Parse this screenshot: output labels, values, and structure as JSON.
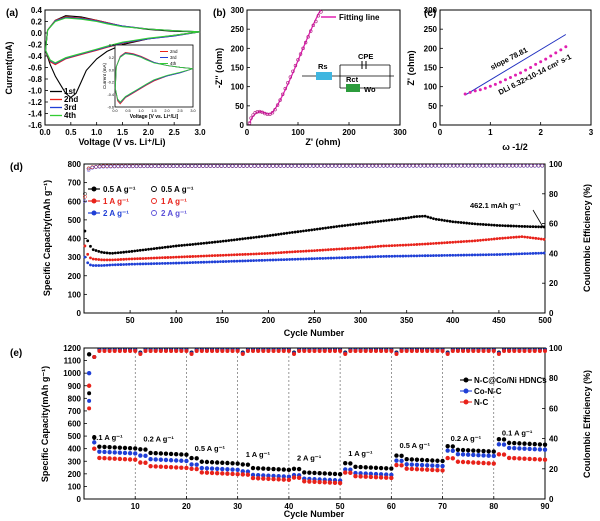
{
  "colors": {
    "black": "#000000",
    "red": "#e8221a",
    "blue": "#1f3fd6",
    "green": "#33cc33",
    "magenta": "#e020b0",
    "purple": "#5a4fd8",
    "circuit_rs": "#3fb6e0",
    "circuit_rct": "#2c9c3c"
  },
  "chart_data": [
    {
      "panel": "(a)",
      "type": "line",
      "xlabel": "Voltage (V vs. Li⁺/Li)",
      "ylabel": "Current(mA)",
      "xlim": [
        0.0,
        3.0
      ],
      "ylim": [
        -1.6,
        0.4
      ],
      "xticks": [
        "0.0",
        "0.5",
        "1.0",
        "1.5",
        "2.0",
        "2.5",
        "3.0"
      ],
      "yticks": [
        "-1.6",
        "-1.4",
        "-1.2",
        "-1.0",
        "-0.8",
        "-0.6",
        "-0.4",
        "-0.2",
        "0.0",
        "0.2",
        "0.4"
      ],
      "legend": [
        "1st",
        "2nd",
        "3rd",
        "4th"
      ],
      "series": [
        {
          "name": "1st",
          "color": "#000000",
          "x": [
            0.01,
            0.1,
            0.2,
            0.3,
            0.4,
            0.5,
            0.6,
            0.7,
            0.8,
            1.0,
            1.2,
            1.5,
            2.0,
            2.5,
            3.0,
            2.5,
            2.0,
            1.5,
            1.2,
            1.0,
            0.7,
            0.4,
            0.2,
            0.05,
            0.01
          ],
          "y": [
            -0.3,
            -0.55,
            -0.75,
            -0.9,
            -1.05,
            -1.12,
            -1.05,
            -0.85,
            -0.65,
            -0.45,
            -0.32,
            -0.2,
            -0.1,
            -0.04,
            0.02,
            0.03,
            0.06,
            0.12,
            0.18,
            0.22,
            0.28,
            0.3,
            0.22,
            0.05,
            -0.3
          ]
        },
        {
          "name": "2nd",
          "color": "#e8221a",
          "x": [
            0.01,
            0.1,
            0.2,
            0.4,
            0.6,
            0.8,
            1.0,
            1.2,
            1.5,
            2.0,
            2.5,
            3.0,
            2.5,
            2.0,
            1.5,
            1.2,
            1.0,
            0.7,
            0.4,
            0.2,
            0.05,
            0.01
          ],
          "y": [
            -0.3,
            -0.5,
            -0.55,
            -0.45,
            -0.4,
            -0.35,
            -0.3,
            -0.25,
            -0.18,
            -0.1,
            -0.05,
            0.02,
            0.04,
            0.07,
            0.12,
            0.18,
            0.22,
            0.26,
            0.28,
            0.22,
            0.05,
            -0.3
          ]
        },
        {
          "name": "3rd",
          "color": "#1f3fd6",
          "x": [
            0.01,
            0.1,
            0.2,
            0.4,
            0.6,
            0.8,
            1.0,
            1.2,
            1.5,
            2.0,
            2.5,
            3.0,
            2.5,
            2.0,
            1.5,
            1.2,
            1.0,
            0.7,
            0.4,
            0.2,
            0.05,
            0.01
          ],
          "y": [
            -0.3,
            -0.48,
            -0.53,
            -0.44,
            -0.39,
            -0.34,
            -0.29,
            -0.24,
            -0.17,
            -0.1,
            -0.05,
            0.02,
            0.04,
            0.07,
            0.12,
            0.17,
            0.21,
            0.25,
            0.27,
            0.21,
            0.05,
            -0.3
          ]
        },
        {
          "name": "4th",
          "color": "#33cc33",
          "x": [
            0.01,
            0.1,
            0.2,
            0.4,
            0.6,
            0.8,
            1.0,
            1.2,
            1.5,
            2.0,
            2.5,
            3.0,
            2.5,
            2.0,
            1.5,
            1.2,
            1.0,
            0.7,
            0.4,
            0.2,
            0.05,
            0.01
          ],
          "y": [
            -0.3,
            -0.47,
            -0.52,
            -0.43,
            -0.38,
            -0.33,
            -0.28,
            -0.23,
            -0.16,
            -0.09,
            -0.04,
            0.02,
            0.04,
            0.07,
            0.11,
            0.16,
            0.2,
            0.24,
            0.26,
            0.2,
            0.05,
            -0.3
          ]
        }
      ],
      "inset": {
        "xlabel": "Voltage [V vs. Li⁺/Li]",
        "ylabel": "Current (mA)",
        "xlim": [
          0.0,
          3.0
        ],
        "ylim": [
          -0.6,
          0.4
        ],
        "xticks": [
          "0.0",
          "0.5",
          "1.0",
          "1.5",
          "2.0",
          "2.5",
          "3.0"
        ],
        "yticks": [
          "-0.6",
          "-0.4",
          "-0.2",
          "0.0",
          "0.2",
          "0.4"
        ],
        "legend": [
          "2nd",
          "3rd",
          "4th"
        ]
      }
    },
    {
      "panel": "(b)",
      "type": "scatter",
      "xlabel": "Z' (ohm)",
      "ylabel": "-Z'' (ohm)",
      "xlim": [
        0,
        300
      ],
      "ylim": [
        0,
        300
      ],
      "xticks": [
        "0",
        "100",
        "200",
        "300"
      ],
      "yticks": [
        "0",
        "50",
        "100",
        "150",
        "200",
        "250",
        "300"
      ],
      "legend": [
        "Fitting line"
      ],
      "circuit_labels": [
        "Rs",
        "CPE",
        "Rct",
        "Wo"
      ],
      "points_x": [
        5,
        8,
        12,
        16,
        20,
        25,
        30,
        35,
        40,
        45,
        50,
        55,
        60,
        65,
        70,
        75,
        80,
        85,
        90,
        95,
        100,
        105,
        110,
        115,
        120,
        125,
        130,
        135,
        140,
        145
      ],
      "points_y": [
        5,
        18,
        26,
        32,
        34,
        35,
        33,
        30,
        28,
        28,
        32,
        40,
        52,
        65,
        80,
        95,
        110,
        125,
        140,
        155,
        170,
        185,
        200,
        215,
        230,
        245,
        260,
        270,
        285,
        295
      ],
      "fit_x": [
        5,
        10,
        15,
        20,
        25,
        30,
        35,
        40,
        45,
        50,
        60,
        70,
        80,
        90,
        100,
        110,
        120,
        130,
        140,
        145
      ],
      "fit_y": [
        5,
        20,
        28,
        33,
        35,
        34,
        31,
        29,
        29,
        33,
        52,
        78,
        106,
        136,
        168,
        200,
        232,
        262,
        290,
        300
      ]
    },
    {
      "panel": "(c)",
      "type": "scatter",
      "xlabel": "ω -1/2",
      "ylabel": "Z' (ohm)",
      "xlim": [
        0,
        3
      ],
      "ylim": [
        0,
        300
      ],
      "xticks": [
        "0",
        "1",
        "2",
        "3"
      ],
      "yticks": [
        "0",
        "50",
        "100",
        "150",
        "200",
        "250",
        "300"
      ],
      "annotations": [
        "slope 78.81",
        "DLi 6.32×10-14 cm² s-1"
      ],
      "points_x": [
        0.5,
        0.6,
        0.7,
        0.8,
        0.9,
        1.0,
        1.1,
        1.2,
        1.3,
        1.4,
        1.5,
        1.6,
        1.7,
        1.8,
        1.9,
        2.0,
        2.1,
        2.2,
        2.3,
        2.4,
        2.5
      ],
      "points_y": [
        81,
        85,
        89,
        92,
        96,
        101,
        106,
        112,
        118,
        124,
        130,
        136,
        143,
        150,
        158,
        165,
        172,
        180,
        188,
        196,
        204
      ],
      "fit_x": [
        0.5,
        2.5
      ],
      "fit_y": [
        78,
        236
      ]
    },
    {
      "panel": "(d)",
      "type": "scatter",
      "xlabel": "Cycle Number",
      "ylabel": "Specific Capacity(mAh g⁻¹)",
      "y2label": "Coulombic Efficiency (%)",
      "xlim": [
        0,
        500
      ],
      "ylim": [
        0,
        800
      ],
      "y2lim": [
        0,
        100
      ],
      "xticks": [
        "50",
        "100",
        "150",
        "200",
        "250",
        "300",
        "350",
        "400",
        "450",
        "500"
      ],
      "yticks": [
        "0",
        "100",
        "200",
        "300",
        "400",
        "500",
        "600",
        "700",
        "800"
      ],
      "y2ticks": [
        "0",
        "20",
        "40",
        "60",
        "80",
        "100"
      ],
      "annotation": "462.1 mAh g⁻¹",
      "legend": [
        "0.5 A g⁻¹",
        "1 A g⁻¹",
        "2 A g⁻¹",
        "0.5 A g⁻¹",
        "1 A g⁻¹",
        "2 A g⁻¹"
      ],
      "capacity_series": [
        {
          "name": "0.5 A g⁻¹",
          "color": "#000000",
          "x": [
            1,
            5,
            10,
            20,
            30,
            50,
            75,
            100,
            125,
            150,
            175,
            200,
            225,
            250,
            275,
            300,
            325,
            350,
            360,
            370,
            380,
            400,
            425,
            450,
            475,
            500
          ],
          "y": [
            440,
            370,
            340,
            325,
            320,
            330,
            345,
            360,
            372,
            385,
            400,
            415,
            432,
            448,
            465,
            480,
            495,
            510,
            518,
            520,
            505,
            490,
            478,
            470,
            465,
            462
          ]
        },
        {
          "name": "1 A g⁻¹",
          "color": "#e8221a",
          "x": [
            1,
            5,
            10,
            20,
            30,
            50,
            75,
            100,
            125,
            150,
            175,
            200,
            225,
            250,
            275,
            300,
            325,
            350,
            375,
            400,
            425,
            450,
            475,
            500
          ],
          "y": [
            360,
            300,
            290,
            285,
            285,
            290,
            295,
            300,
            305,
            310,
            315,
            320,
            328,
            335,
            343,
            350,
            360,
            365,
            372,
            380,
            388,
            400,
            410,
            395
          ]
        },
        {
          "name": "2 A g⁻¹",
          "color": "#1f3fd6",
          "x": [
            1,
            5,
            10,
            20,
            30,
            50,
            75,
            100,
            125,
            150,
            175,
            200,
            225,
            250,
            275,
            300,
            325,
            350,
            375,
            400,
            425,
            450,
            475,
            500
          ],
          "y": [
            300,
            260,
            255,
            255,
            258,
            262,
            265,
            268,
            272,
            276,
            280,
            284,
            288,
            292,
            296,
            300,
            304,
            306,
            308,
            310,
            312,
            314,
            318,
            322
          ]
        }
      ],
      "efficiency_series": [
        {
          "name": "0.5 A g⁻¹",
          "color": "#000000",
          "x": [
            1,
            3,
            5,
            10,
            20,
            50,
            100,
            150,
            200,
            250,
            300,
            350,
            400,
            450,
            500
          ],
          "y": [
            80,
            95,
            97,
            98,
            98.5,
            98.5,
            98.6,
            98.6,
            98.7,
            98.7,
            98.7,
            98.8,
            98.8,
            98.8,
            98.8
          ]
        },
        {
          "name": "1 A g⁻¹",
          "color": "#e8221a",
          "x": [
            1,
            3,
            5,
            10,
            20,
            50,
            100,
            150,
            200,
            250,
            300,
            350,
            400,
            450,
            500
          ],
          "y": [
            78,
            94,
            97,
            98,
            98.5,
            98.6,
            98.6,
            98.7,
            98.7,
            98.7,
            98.8,
            98.8,
            98.8,
            98.8,
            98.9
          ]
        },
        {
          "name": "2 A g⁻¹",
          "color": "#5a4fd8",
          "x": [
            1,
            3,
            5,
            10,
            20,
            50,
            100,
            150,
            200,
            250,
            300,
            350,
            400,
            450,
            500
          ],
          "y": [
            75,
            93,
            96,
            97.8,
            98.2,
            98.4,
            98.5,
            98.6,
            98.6,
            98.7,
            98.7,
            98.7,
            98.8,
            98.8,
            98.8
          ]
        }
      ]
    },
    {
      "panel": "(e)",
      "type": "scatter",
      "xlabel": "Cycle Number",
      "ylabel": "Specific Capacity(mAh g⁻¹)",
      "y2label": "Coulombic Efficiency (%)",
      "xlim": [
        0,
        90
      ],
      "ylim": [
        0,
        1200
      ],
      "y2lim": [
        0,
        100
      ],
      "xticks": [
        "10",
        "20",
        "30",
        "40",
        "50",
        "60",
        "70",
        "80",
        "90"
      ],
      "yticks": [
        "0",
        "100",
        "200",
        "300",
        "400",
        "500",
        "600",
        "700",
        "800",
        "900",
        "1000",
        "1100",
        "1200"
      ],
      "y2ticks": [
        "0",
        "20",
        "40",
        "60",
        "80",
        "100"
      ],
      "legend": [
        "N-C@Co/Ni HDNCs",
        "Co-N-C",
        "N-C"
      ],
      "rate_labels": [
        "0.1 A g⁻¹",
        "0.2 A g⁻¹",
        "0.5 A g⁻¹",
        "1 A g⁻¹",
        "2 A g⁻¹",
        "1 A g⁻¹",
        "0.5 A g⁻¹",
        "0.2 A g⁻¹",
        "0.1 A g⁻¹"
      ],
      "segment_boundaries": [
        10,
        20,
        30,
        40,
        50,
        60,
        70,
        80
      ],
      "capacity_series": [
        {
          "name": "N-C@Co/Ni HDNCs",
          "color": "#000000",
          "segment_means": [
            420,
            370,
            300,
            250,
            215,
            260,
            320,
            395,
            450
          ],
          "first_cycle": 1150
        },
        {
          "name": "Co-N-C",
          "color": "#1f3fd6",
          "segment_means": [
            380,
            320,
            250,
            195,
            165,
            210,
            280,
            360,
            410
          ],
          "first_cycle": 1000
        },
        {
          "name": "N-C",
          "color": "#e8221a",
          "segment_means": [
            330,
            265,
            215,
            170,
            145,
            185,
            245,
            300,
            330
          ],
          "first_cycle": 900
        }
      ],
      "efficiency_series": [
        {
          "name": "N-C@Co/Ni HDNCs",
          "color": "#000000",
          "first_cycle": 70,
          "steady": 99
        },
        {
          "name": "Co-N-C",
          "color": "#1f3fd6",
          "first_cycle": 65,
          "steady": 98.5
        },
        {
          "name": "N-C",
          "color": "#e8221a",
          "first_cycle": 60,
          "steady": 98
        }
      ]
    }
  ]
}
